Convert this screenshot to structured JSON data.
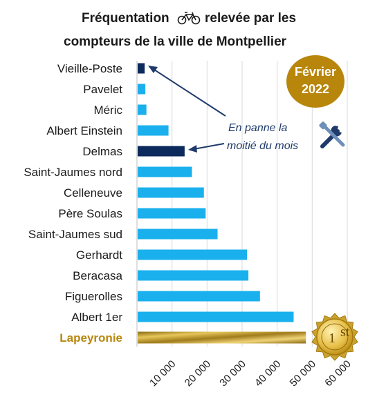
{
  "chart_data": {
    "type": "bar",
    "orientation": "horizontal",
    "title_line1_a": "Fréquentation",
    "title_line1_b": "relevée par les",
    "title_line2": "compteurs de la ville de Montpellier",
    "categories": [
      "Vieille-Poste",
      "Pavelet",
      "Méric",
      "Albert Einstein",
      "Delmas",
      "Saint-Jaumes nord",
      "Celleneuve",
      "Père Soulas",
      "Saint-Jaumes sud",
      "Gerhardt",
      "Beracasa",
      "Figuerolles",
      "Albert 1er",
      "Lapeyronie"
    ],
    "values": [
      2000,
      2200,
      2500,
      8800,
      13400,
      15500,
      18900,
      19400,
      22800,
      31200,
      31600,
      34900,
      44500,
      48000
    ],
    "highlight": {
      "broken": [
        "Vieille-Poste",
        "Delmas"
      ],
      "first": "Lapeyronie"
    },
    "xlim": [
      0,
      60000
    ],
    "ticks": [
      "10 000",
      "20 000",
      "30 000",
      "40 000",
      "50 000",
      "60 000"
    ],
    "tick_values": [
      10000,
      20000,
      30000,
      40000,
      50000,
      60000
    ],
    "grid": true,
    "colors": {
      "normal": "#1ab0ee",
      "broken": "#0c2a5c",
      "first": "#c9a227",
      "badge": "#b8860b",
      "note": "#1f3a6b"
    }
  },
  "annotation": {
    "line1": "En panne la",
    "line2": "moitié du mois",
    "icon": "tools-icon"
  },
  "badge": {
    "line1": "Février",
    "line2": "2022"
  },
  "medal": {
    "label": "1",
    "suffix": "st",
    "icon": "medal-icon"
  },
  "title_icon": "bicycle-icon"
}
